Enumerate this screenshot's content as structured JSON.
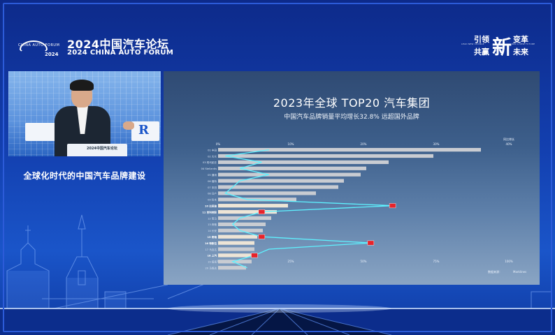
{
  "header": {
    "logo_small_text": "CHINA AUTO FORUM",
    "logo_year": "2024",
    "forum_title": "2024中国汽车论坛",
    "forum_subtitle": "2024 CHINA AUTO FORUM"
  },
  "slogan": {
    "left_top": "引领",
    "left_bottom": "共赢",
    "big_char": "新",
    "right_top": "变革",
    "right_bottom": "未来",
    "tiny_left": "LEAD NEW CHANGE",
    "tiny_right": "WIN A NEW FUTURE"
  },
  "video": {
    "podium_text": "2024中国汽车论坛",
    "right_logo": "R"
  },
  "topic": {
    "text": "全球化时代的中国汽车品牌建设"
  },
  "slide": {
    "title": "2023年全球 TOP20 汽车集团",
    "subtitle": "中国汽车品牌销量平均增长32.8% 远超国外品牌",
    "legend": "同比增长",
    "source": "数据来源：",
    "source_right": "Marklines"
  },
  "chart_data": {
    "type": "bar",
    "title": "2023年全球 TOP20 汽车集团",
    "subtitle": "中国汽车品牌销量平均增长32.8% 远超国外品牌",
    "top_axis_ticks": [
      "0%",
      "10%",
      "20%",
      "30%",
      "40%"
    ],
    "bottom_axis_ticks": [
      "0",
      "25%",
      "50%",
      "75%",
      "100%"
    ],
    "categories": [
      "01 丰田",
      "02 大众",
      "03 现代起亚",
      "04 Stellantis",
      "05 通用",
      "06 福特",
      "07 本田",
      "08 日产",
      "09 铃木",
      "10 比亚迪",
      "11 吉利控股",
      "12 宝马",
      "13 奔驰",
      "14 长安",
      "15 奇瑞",
      "16 特斯拉",
      "17 马自达",
      "18 上汽",
      "19 塔塔",
      "20 马恒达"
    ],
    "highlighted": [
      "10 比亚迪",
      "11 吉利控股",
      "15 奇瑞",
      "16 特斯拉",
      "18 上汽"
    ],
    "values": [
      94,
      77,
      61,
      53,
      51,
      45,
      43,
      35,
      28,
      25,
      21,
      19,
      17,
      16,
      14,
      13,
      13,
      12,
      12,
      10
    ],
    "growth_pct": [
      7,
      1,
      6,
      3,
      7,
      3,
      2,
      1,
      4,
      24,
      6,
      3,
      2,
      3,
      6,
      21,
      7,
      5,
      2,
      4
    ]
  }
}
